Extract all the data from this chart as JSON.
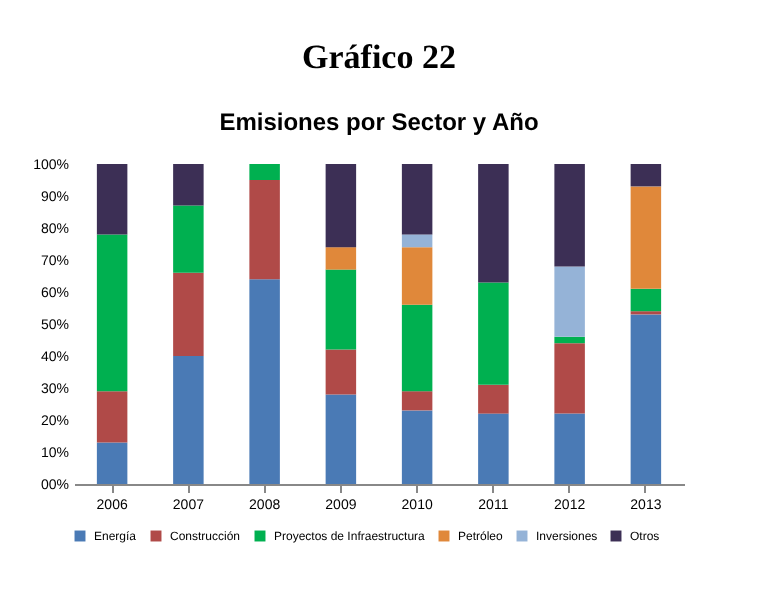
{
  "chart_data": {
    "type": "bar",
    "title": "Gráfico 22",
    "subtitle": "Emisiones por Sector y Año",
    "stacked": true,
    "categories": [
      "2006",
      "2007",
      "2008",
      "2009",
      "2010",
      "2011",
      "2012",
      "2013"
    ],
    "series": [
      {
        "name": "Energía",
        "color": "#4a7ab5",
        "values": [
          13,
          40,
          64,
          28,
          23,
          22,
          22,
          53
        ]
      },
      {
        "name": "Construcción",
        "color": "#b04a48",
        "values": [
          16,
          26,
          31,
          14,
          6,
          9,
          22,
          1
        ]
      },
      {
        "name": "Proyectos de Infraestructura",
        "color": "#00b050",
        "values": [
          49,
          21,
          5,
          25,
          27,
          32,
          2,
          7
        ]
      },
      {
        "name": "Petróleo",
        "color": "#e0883a",
        "values": [
          0,
          0,
          0,
          7,
          18,
          0,
          0,
          32
        ]
      },
      {
        "name": "Inversiones",
        "color": "#95b3d7",
        "values": [
          0,
          0,
          0,
          0,
          4,
          0,
          22,
          0
        ]
      },
      {
        "name": "Otros",
        "color": "#3c2f55",
        "values": [
          22,
          13,
          0,
          26,
          22,
          37,
          32,
          7
        ]
      }
    ],
    "ylim": [
      0,
      100
    ],
    "yticks": [
      {
        "value": 0,
        "label": "00%"
      },
      {
        "value": 10,
        "label": "10%"
      },
      {
        "value": 20,
        "label": "20%"
      },
      {
        "value": 30,
        "label": "30%"
      },
      {
        "value": 40,
        "label": "40%"
      },
      {
        "value": 50,
        "label": "50%"
      },
      {
        "value": 60,
        "label": "60%"
      },
      {
        "value": 70,
        "label": "70%"
      },
      {
        "value": 80,
        "label": "80%"
      },
      {
        "value": 90,
        "label": "90%"
      },
      {
        "value": 100,
        "label": "100%"
      }
    ],
    "grid": false,
    "legend": "bottom"
  }
}
